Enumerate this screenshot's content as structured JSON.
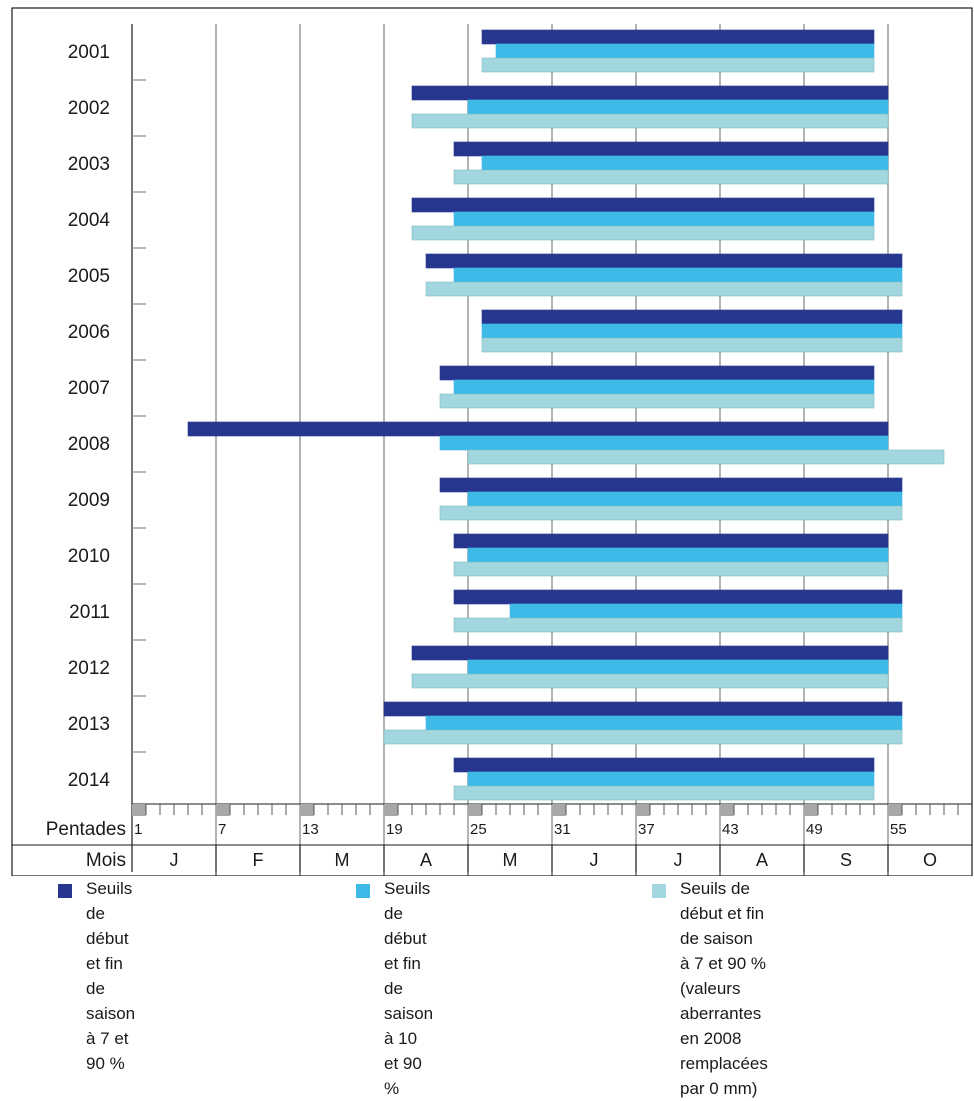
{
  "chart_data": {
    "type": "bar",
    "orientation": "horizontal",
    "categories": [
      "2001",
      "2002",
      "2003",
      "2004",
      "2005",
      "2006",
      "2007",
      "2008",
      "2009",
      "2010",
      "2011",
      "2012",
      "2013",
      "2014"
    ],
    "x_axis": {
      "pentade_label": "Pentades",
      "pentade_range": [
        1,
        60
      ],
      "pentade_tick_labels": [
        "1",
        "7",
        "13",
        "19",
        "25",
        "31",
        "37",
        "43",
        "49",
        "55"
      ],
      "month_label": "Mois",
      "months": [
        "J",
        "F",
        "M",
        "A",
        "M",
        "J",
        "J",
        "A",
        "S",
        "O"
      ]
    },
    "grid": "vertical lines at month boundaries",
    "legend_position": "bottom",
    "series": [
      {
        "name": "Seuils de début et fin de saison à 7 et 90 %",
        "color": "#27378f",
        "start_pentade": [
          26,
          21,
          24,
          21,
          22,
          26,
          23,
          5,
          23,
          24,
          24,
          21,
          19,
          24
        ],
        "end_pentade": [
          53,
          54,
          54,
          53,
          55,
          55,
          53,
          54,
          55,
          54,
          55,
          54,
          55,
          53
        ]
      },
      {
        "name": "Seuils de début et fin de saison à 10 et 90 %",
        "color": "#3fb9e7",
        "start_pentade": [
          27,
          25,
          26,
          24,
          24,
          26,
          24,
          23,
          25,
          25,
          28,
          25,
          22,
          25
        ],
        "end_pentade": [
          53,
          54,
          54,
          53,
          55,
          55,
          53,
          54,
          55,
          54,
          55,
          54,
          55,
          53
        ]
      },
      {
        "name": "Seuils de début et fin de saison à 7 et 90 % (valeurs aberrantes en 2008 remplacées par 0 mm)",
        "color": "#a3d7df",
        "start_pentade": [
          26,
          21,
          24,
          21,
          22,
          26,
          23,
          25,
          23,
          24,
          24,
          21,
          19,
          24
        ],
        "end_pentade": [
          53,
          54,
          54,
          53,
          55,
          55,
          53,
          58,
          55,
          54,
          55,
          54,
          55,
          53
        ]
      }
    ]
  },
  "legend": [
    {
      "lines": [
        "Seuils de début et fin de",
        "saison à 7 et 90 %"
      ],
      "color": "#27378f"
    },
    {
      "lines": [
        "Seuils de début et fin de",
        "saison à 10 et 90 %"
      ],
      "color": "#3fb9e7"
    },
    {
      "lines": [
        "Seuils de début et fin de saison",
        "à 7 et 90 % (valeurs aberrantes",
        "en 2008 remplacées par 0 mm)"
      ],
      "color": "#a3d7df"
    }
  ]
}
